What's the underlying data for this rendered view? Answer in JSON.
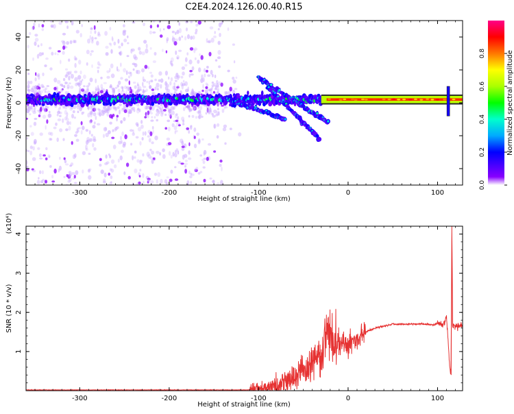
{
  "title": "C2E4.2024.126.00.40.R15",
  "chart_data": [
    {
      "type": "heatmap",
      "xlabel": "Height of straight line (km)",
      "ylabel": "Frequency (Hz)",
      "xlim": [
        -360,
        128
      ],
      "ylim": [
        -50,
        50
      ],
      "x_ticks": [
        -300,
        -200,
        -100,
        0,
        100
      ],
      "y_ticks": [
        -40,
        -20,
        0,
        20,
        40
      ],
      "colorbar": {
        "label": "Normalized spectral amplitude",
        "range": [
          0.0,
          1.0
        ],
        "ticks": [
          0.0,
          0.2,
          0.4,
          0.6,
          0.8
        ],
        "colormap": "hsv-rainbow",
        "colors": [
          "#ffffff",
          "#8800ff",
          "#0000ff",
          "#00aaff",
          "#00ffcc",
          "#00ff00",
          "#ffff00",
          "#ff7700",
          "#ff0000",
          "#ff0088"
        ]
      },
      "features": {
        "noise_region_x": [
          -360,
          -120
        ],
        "main_band_freq": 2,
        "strong_band_x": [
          -30,
          128
        ],
        "diagonal_branches": [
          {
            "x": [
              -100,
              -22
            ],
            "y": [
              15,
              -12
            ]
          },
          {
            "x": [
              -90,
              -32
            ],
            "y": [
              10,
              -22
            ]
          },
          {
            "x": [
              -140,
              -70
            ],
            "y": [
              3,
              -10
            ]
          }
        ],
        "spikes_near_x": 112
      }
    },
    {
      "type": "line",
      "xlabel": "Height of straight line (km)",
      "ylabel": "SNR (10 * v/v)",
      "y_multiplier_label": "(x10⁴)",
      "xlim": [
        -360,
        128
      ],
      "ylim": [
        0,
        4.2
      ],
      "x_ticks": [
        -300,
        -200,
        -100,
        0,
        100
      ],
      "y_ticks": [
        1,
        2,
        3,
        4
      ],
      "series": [
        {
          "color": "#e63232",
          "x": [
            -360,
            -300,
            -200,
            -110,
            -100,
            -90,
            -80,
            -70,
            -60,
            -50,
            -40,
            -30,
            -25,
            -20,
            -15,
            -10,
            -5,
            0,
            10,
            20,
            30,
            50,
            70,
            90,
            95,
            100,
            105,
            108,
            110,
            112,
            114,
            115,
            116,
            117,
            118,
            122,
            128
          ],
          "y": [
            0.02,
            0.02,
            0.02,
            0.02,
            0.05,
            0.08,
            0.12,
            0.2,
            0.3,
            0.5,
            0.7,
            1.0,
            1.4,
            1.5,
            1.1,
            1.2,
            1.3,
            1.2,
            1.35,
            1.5,
            1.6,
            1.7,
            1.7,
            1.7,
            1.68,
            1.72,
            1.7,
            1.72,
            1.9,
            1.2,
            0.5,
            0.5,
            4.2,
            1.65,
            1.65,
            1.65,
            1.65
          ]
        }
      ]
    }
  ]
}
